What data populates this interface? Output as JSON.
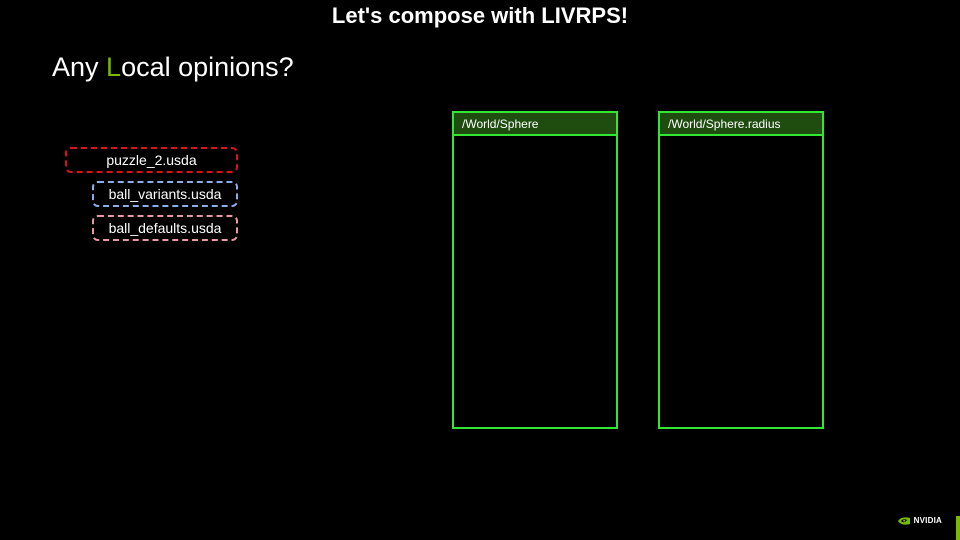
{
  "slide": {
    "title": "Let's compose with LIVRPS!",
    "subtitle": {
      "prefix": "Any ",
      "accent_letter": "L",
      "suffix": "ocal opinions?"
    }
  },
  "layers": [
    {
      "name": "puzzle_2.usda",
      "border_color": "#e0101a"
    },
    {
      "name": "ball_variants.usda",
      "border_color": "#8aaee8"
    },
    {
      "name": "ball_defaults.usda",
      "border_color": "#e89aa4"
    }
  ],
  "panels": [
    {
      "path": "/World/Sphere"
    },
    {
      "path": "/World/Sphere.radius"
    }
  ],
  "brand": {
    "logo_text": "NVIDIA",
    "accent_color": "#76b900"
  },
  "colors": {
    "background": "#000000",
    "panel_border": "#33e633",
    "panel_header": "#1f4d10"
  }
}
